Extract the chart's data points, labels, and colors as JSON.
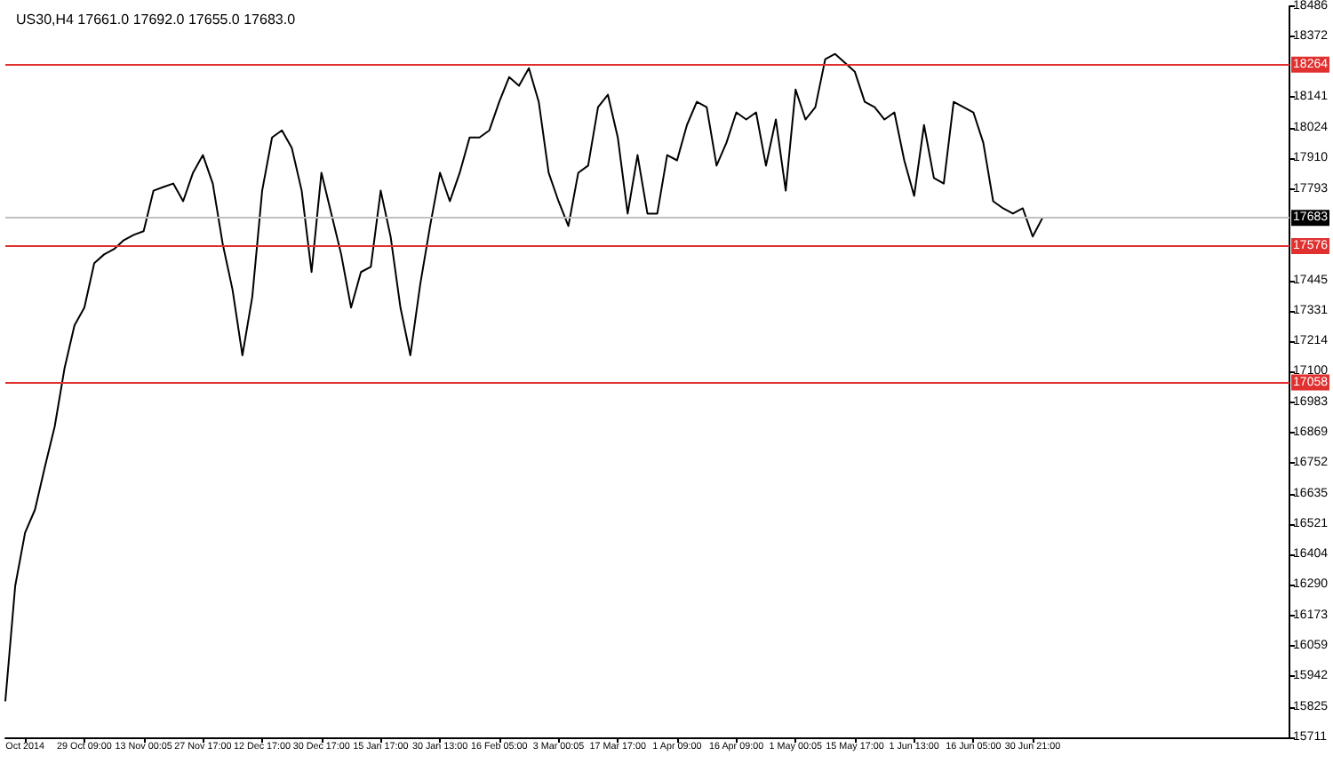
{
  "chart_data": {
    "type": "line",
    "title": "US30,H4 17661.0 17692.0 17655.0 17683.0",
    "categories": [
      null,
      null,
      "Oct 2014",
      null,
      null,
      null,
      null,
      null,
      "29 Oct 09:00",
      null,
      null,
      null,
      null,
      null,
      "13 Nov 00:05",
      null,
      null,
      null,
      null,
      null,
      "27 Nov 17:00",
      null,
      null,
      null,
      null,
      null,
      "12 Dec 17:00",
      null,
      null,
      null,
      null,
      null,
      "30 Dec 17:00",
      null,
      null,
      null,
      null,
      null,
      "15 Jan 17:00",
      null,
      null,
      null,
      null,
      null,
      "30 Jan 13:00",
      null,
      null,
      null,
      null,
      null,
      "16 Feb 05:00",
      null,
      null,
      null,
      null,
      null,
      "3 Mar 00:05",
      null,
      null,
      null,
      null,
      null,
      "17 Mar 17:00",
      null,
      null,
      null,
      null,
      null,
      "1 Apr 09:00",
      null,
      null,
      null,
      null,
      null,
      "16 Apr 09:00",
      null,
      null,
      null,
      null,
      null,
      "1 May 00:05",
      null,
      null,
      null,
      null,
      null,
      "15 May 17:00",
      null,
      null,
      null,
      null,
      null,
      "1 Jun 13:00",
      null,
      null,
      null,
      null,
      null,
      "16 Jun 05:00",
      null,
      null,
      null,
      null,
      null,
      "30 Jun 21:00",
      null,
      null,
      null,
      null,
      null,
      null,
      null,
      null,
      null,
      null,
      null,
      null,
      null,
      null,
      null,
      null,
      null,
      null,
      null,
      null,
      null,
      null,
      null,
      null,
      null,
      null
    ],
    "series": [
      {
        "color": "#000000",
        "values": [
          15848,
          16286,
          16488,
          16575,
          16737,
          16891,
          17113,
          17275,
          17342,
          17511,
          17544,
          17564,
          17598,
          17618,
          17632,
          17786,
          17800,
          17813,
          17746,
          17854,
          17921,
          17813,
          17585,
          17410,
          17161,
          17383,
          17786,
          17988,
          18015,
          17948,
          17786,
          17477,
          17854,
          17699,
          17544,
          17342,
          17477,
          17497,
          17786,
          17612,
          17342,
          17161,
          17430,
          17652,
          17854,
          17746,
          17854,
          17988,
          17988,
          18015,
          18123,
          18217,
          18184,
          18251,
          18123,
          17854,
          17746,
          17652,
          17854,
          17881,
          18103,
          18150,
          17988,
          17699,
          17921,
          17699,
          17699,
          17921,
          17901,
          18035,
          18123,
          18103,
          17881,
          17968,
          18083,
          18056,
          18083,
          17881,
          18056,
          17786,
          18170,
          18056,
          18103,
          18285,
          18305,
          18271,
          18237,
          18123,
          18103,
          18056,
          18083,
          17901,
          17766,
          18035,
          17834,
          17813,
          18123,
          18103,
          18083,
          17968,
          17746,
          17719,
          17699,
          17719,
          17612,
          17683,
          null,
          null,
          null,
          null,
          null,
          null,
          null,
          null,
          null,
          null,
          null,
          null,
          null,
          null,
          null,
          null,
          null,
          null,
          null,
          null,
          null,
          null,
          null,
          null,
          null
        ]
      }
    ],
    "ylim": [
      15711,
      18486
    ],
    "yticks": [
      15711,
      15825,
      15942,
      16059,
      16173,
      16290,
      16404,
      16521,
      16635,
      16752,
      16869,
      16983,
      17100,
      17214,
      17331,
      17445,
      17793,
      17910,
      18024,
      18141,
      18372,
      18486
    ],
    "ref_lines": [
      {
        "axis": "y",
        "value": 18264,
        "label": "18264",
        "color": "#e03030"
      },
      {
        "axis": "y",
        "value": 17576,
        "label": "17576",
        "color": "#e03030"
      },
      {
        "axis": "y",
        "value": 17058,
        "label": "17058",
        "color": "#e03030"
      },
      {
        "axis": "y",
        "value": 17683,
        "label": "17683",
        "color": "#c0c0c0"
      }
    ],
    "grid": false,
    "marker": "none",
    "line_style": "solid"
  }
}
